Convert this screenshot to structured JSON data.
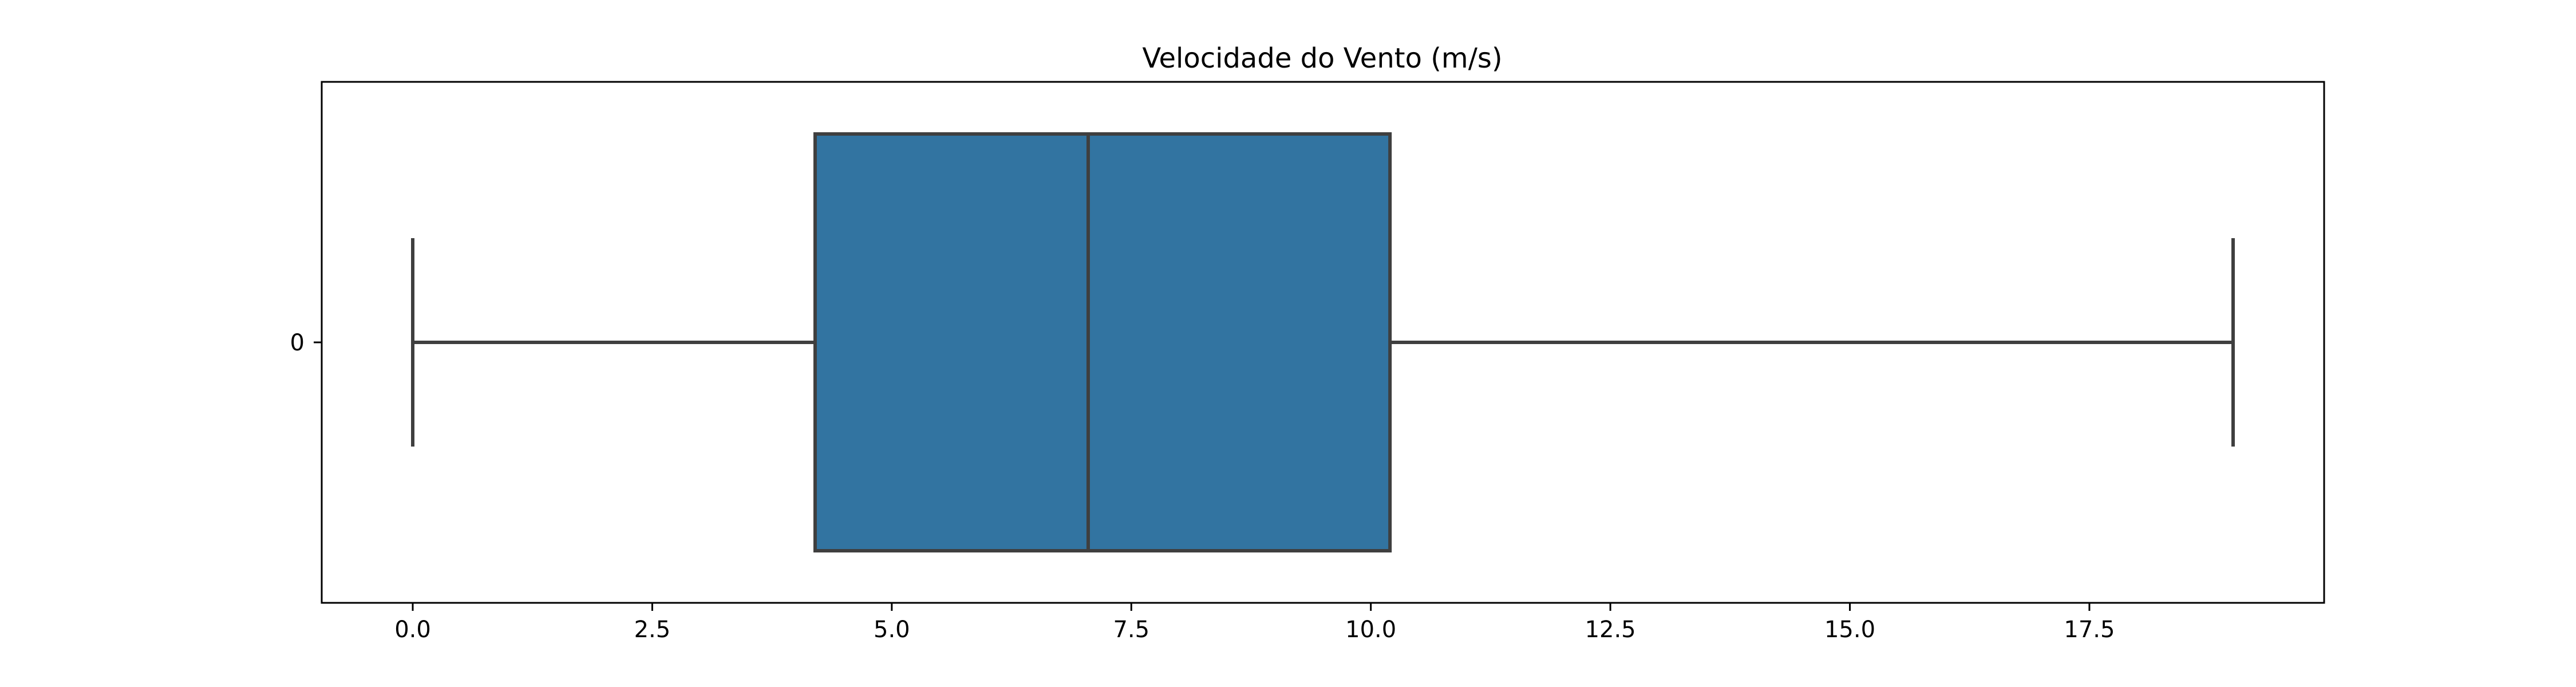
{
  "chart_data": {
    "type": "box",
    "title": "Velocidade do Vento (m/s)",
    "xlabel": "",
    "ylabel": "",
    "orientation": "horizontal",
    "xlim": [
      -0.95,
      19.95
    ],
    "x_ticks": [
      0.0,
      2.5,
      5.0,
      7.5,
      10.0,
      12.5,
      15.0,
      17.5
    ],
    "x_tick_labels": [
      "0.0",
      "2.5",
      "5.0",
      "7.5",
      "10.0",
      "12.5",
      "15.0",
      "17.5"
    ],
    "categories": [
      "0"
    ],
    "boxes": [
      {
        "category": "0",
        "whisker_low": 0.0,
        "q1": 4.2,
        "median": 7.05,
        "q3": 10.2,
        "whisker_high": 19.0
      }
    ],
    "grid": false,
    "colors": {
      "box_fill": "#3274a1",
      "line": "#3f3f3f",
      "axes": "#000000"
    }
  }
}
